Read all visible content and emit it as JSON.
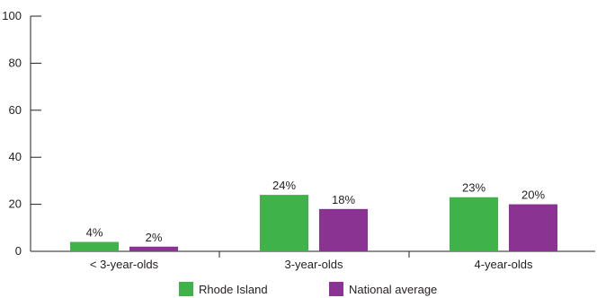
{
  "chart_data": {
    "type": "bar",
    "categories": [
      "< 3-year-olds",
      "3-year-olds",
      "4-year-olds"
    ],
    "series": [
      {
        "name": "Rhode Island",
        "values": [
          4,
          24,
          23
        ],
        "labels": [
          "4%",
          "24%",
          "23%"
        ],
        "color": "#3fb24a"
      },
      {
        "name": "National average",
        "values": [
          2,
          18,
          20
        ],
        "labels": [
          "2%",
          "18%",
          "20%"
        ],
        "color": "#8a3393"
      }
    ],
    "yticks": [
      "0",
      "20",
      "40",
      "60",
      "80",
      "100"
    ],
    "ylim": [
      0,
      100
    ],
    "grid": false,
    "legend_position": "bottom-center"
  }
}
